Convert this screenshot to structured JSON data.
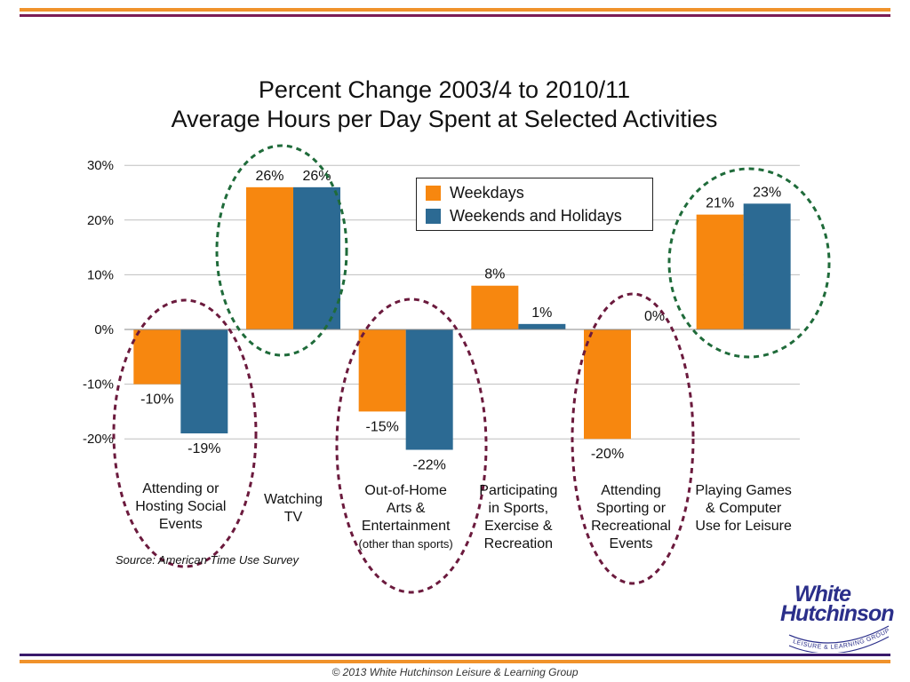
{
  "chart_data": {
    "type": "bar",
    "title": "Percent Change 2003/4 to 2010/11",
    "subtitle": "Average Hours per Day Spent at Selected Activities",
    "categories": [
      [
        "Attending or",
        "Hosting Social",
        "Events"
      ],
      [
        "Watching",
        "TV"
      ],
      [
        "Out-of-Home",
        "Arts &",
        "Entertainment",
        "(other than sports)"
      ],
      [
        "Participating",
        "in Sports,",
        "Exercise &",
        "Recreation"
      ],
      [
        "Attending",
        "Sporting or",
        "Recreational",
        "Events"
      ],
      [
        "Playing Games",
        "& Computer",
        "Use for Leisure"
      ]
    ],
    "series": [
      {
        "name": "Weekdays",
        "color": "#f7870f",
        "values": [
          -10,
          26,
          -15,
          8,
          -20,
          21
        ]
      },
      {
        "name": "Weekends and Holidays",
        "color": "#2c6a93",
        "values": [
          -19,
          26,
          -22,
          1,
          0,
          23
        ]
      }
    ],
    "data_labels": [
      [
        "-10%",
        "26%",
        "-15%",
        "8%",
        "-20%",
        "21%"
      ],
      [
        "-19%",
        "26%",
        "-22%",
        "1%",
        "0%",
        "23%"
      ]
    ],
    "yticks": [
      "30%",
      "20%",
      "10%",
      "0%",
      "-10%",
      "-20%"
    ],
    "ytick_values": [
      30,
      20,
      10,
      0,
      -10,
      -20
    ],
    "ylim": [
      -20,
      30
    ],
    "grid": true,
    "legend_position": "top-center",
    "highlight_colors": {
      "negative": "#6b1a3d",
      "positive": "#1f6b3a"
    }
  },
  "source": "Source: American Time Use Survey",
  "footer": "© 2013 White Hutchinson Leisure & Learning Group",
  "logo": {
    "line1": "White",
    "line2": "Hutchinson",
    "tagline": "LEISURE & LEARNING GROUP"
  }
}
